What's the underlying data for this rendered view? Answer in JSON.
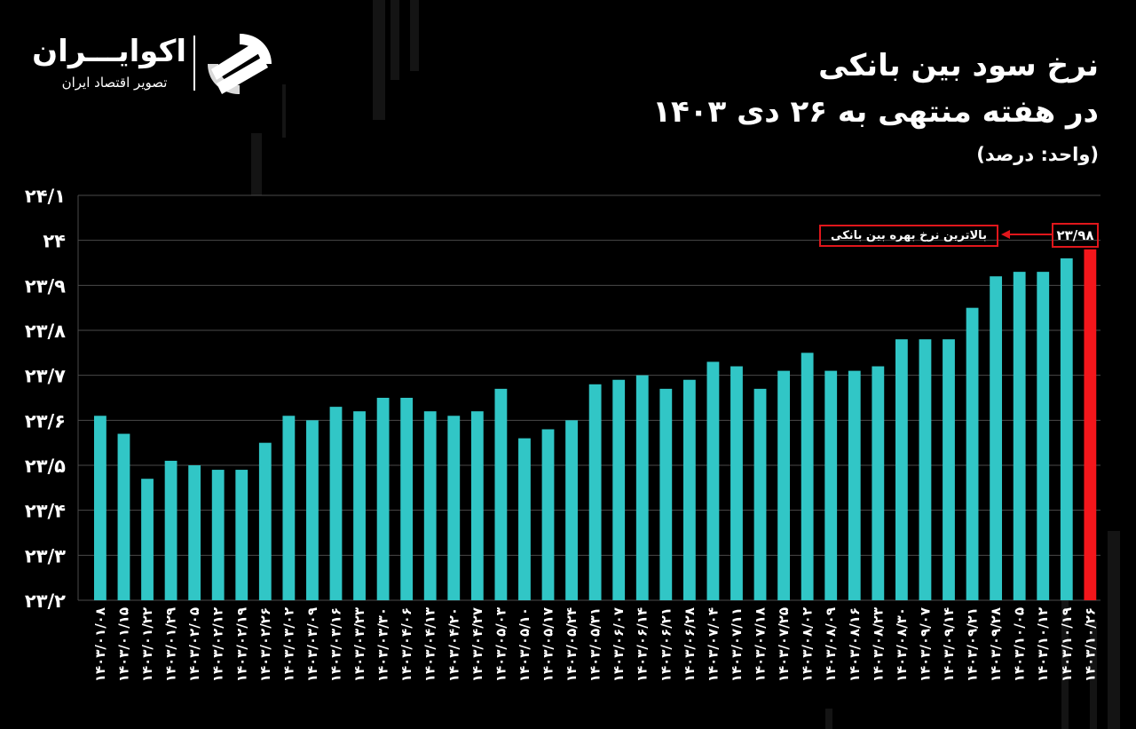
{
  "brand": {
    "name": "اکوایـــران",
    "tagline": "تصویر اقتصاد ایران"
  },
  "header": {
    "title_line1": "نرخ سود بین بانکی",
    "title_line2": "در هفته منتهی به ۲۶ دی ۱۴۰۳",
    "unit": "(واحد: درصد)"
  },
  "callout": {
    "label": "بالاترین نرخ بهره بین بانکی",
    "value": "۲۳/۹۸"
  },
  "colors": {
    "bar": "#31c6c6",
    "highlight": "#f4161b",
    "grid": "#4a4a4a",
    "background": "#000000"
  },
  "chart_data": {
    "type": "bar",
    "ylim": [
      23.2,
      24.1
    ],
    "yticks": [
      23.2,
      23.3,
      23.4,
      23.5,
      23.6,
      23.7,
      23.8,
      23.9,
      24.0,
      24.1
    ],
    "ytick_labels": [
      "۲۳/۲",
      "۲۳/۳",
      "۲۳/۴",
      "۲۳/۵",
      "۲۳/۶",
      "۲۳/۷",
      "۲۳/۸",
      "۲۳/۹",
      "۲۴",
      "۲۴/۱"
    ],
    "categories": [
      "۱۴۰۳/۰۱/۰۸",
      "۱۴۰۳/۰۱/۱۵",
      "۱۴۰۳/۰۱/۲۲",
      "۱۴۰۳/۰۱/۲۹",
      "۱۴۰۳/۰۲/۰۵",
      "۱۴۰۳/۰۲/۱۲",
      "۱۴۰۳/۰۲/۱۹",
      "۱۴۰۳/۰۲/۲۶",
      "۱۴۰۳/۰۳/۰۲",
      "۱۴۰۳/۰۳/۰۹",
      "۱۴۰۳/۰۳/۱۶",
      "۱۴۰۳/۰۳/۲۳",
      "۱۴۰۳/۰۳/۳۰",
      "۱۴۰۳/۰۴/۰۶",
      "۱۴۰۳/۰۴/۱۳",
      "۱۴۰۳/۰۴/۲۰",
      "۱۴۰۳/۰۴/۲۷",
      "۱۴۰۳/۰۵/۰۳",
      "۱۴۰۳/۰۵/۱۰",
      "۱۴۰۳/۰۵/۱۷",
      "۱۴۰۳/۰۵/۲۴",
      "۱۴۰۳/۰۵/۳۱",
      "۱۴۰۳/۰۶/۰۷",
      "۱۴۰۳/۰۶/۱۴",
      "۱۴۰۳/۰۶/۲۱",
      "۱۴۰۳/۰۶/۲۸",
      "۱۴۰۳/۰۷/۰۴",
      "۱۴۰۳/۰۷/۱۱",
      "۱۴۰۳/۰۷/۱۸",
      "۱۴۰۳/۰۷/۲۵",
      "۱۴۰۳/۰۸/۰۲",
      "۱۴۰۳/۰۸/۰۹",
      "۱۴۰۳/۰۸/۱۶",
      "۱۴۰۳/۰۸/۲۳",
      "۱۴۰۳/۰۸/۳۰",
      "۱۴۰۳/۰۹/۰۷",
      "۱۴۰۳/۰۹/۱۴",
      "۱۴۰۳/۰۹/۲۱",
      "۱۴۰۳/۰۹/۲۸",
      "۱۴۰۳/۱۰/۰۵",
      "۱۴۰۳/۱۰/۱۲",
      "۱۴۰۳/۱۰/۱۹",
      "۱۴۰۳/۱۰/۲۶"
    ],
    "values": [
      23.61,
      23.57,
      23.47,
      23.51,
      23.5,
      23.49,
      23.49,
      23.55,
      23.61,
      23.6,
      23.63,
      23.62,
      23.65,
      23.65,
      23.62,
      23.61,
      23.62,
      23.67,
      23.56,
      23.58,
      23.6,
      23.68,
      23.69,
      23.7,
      23.67,
      23.69,
      23.73,
      23.72,
      23.67,
      23.71,
      23.75,
      23.71,
      23.71,
      23.72,
      23.78,
      23.78,
      23.78,
      23.85,
      23.92,
      23.93,
      23.93,
      23.96,
      23.98
    ],
    "highlight_index": 42,
    "grid": true
  }
}
